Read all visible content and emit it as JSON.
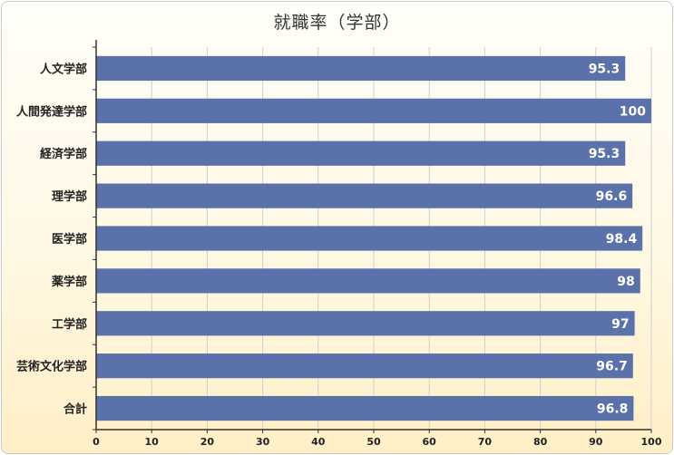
{
  "chart_data": {
    "type": "bar",
    "orientation": "horizontal",
    "title": "就職率（学部）",
    "categories": [
      "人文学部",
      "人間発達学部",
      "経済学部",
      "理学部",
      "医学部",
      "薬学部",
      "工学部",
      "芸術文化学部",
      "合計"
    ],
    "values": [
      95.3,
      100,
      95.3,
      96.6,
      98.4,
      98,
      97,
      96.7,
      96.8
    ],
    "value_labels": [
      "95.3",
      "100",
      "95.3",
      "96.6",
      "98.4",
      "98",
      "97",
      "96.7",
      "96.8"
    ],
    "xlim": [
      0,
      100
    ],
    "x_ticks": [
      0,
      10,
      20,
      30,
      40,
      50,
      60,
      70,
      80,
      90,
      100
    ],
    "xlabel": "",
    "ylabel": "",
    "grid": "vertical",
    "legend": "none",
    "bar_color": "#5a72a9",
    "gridline_color": "#cfcfcf"
  }
}
